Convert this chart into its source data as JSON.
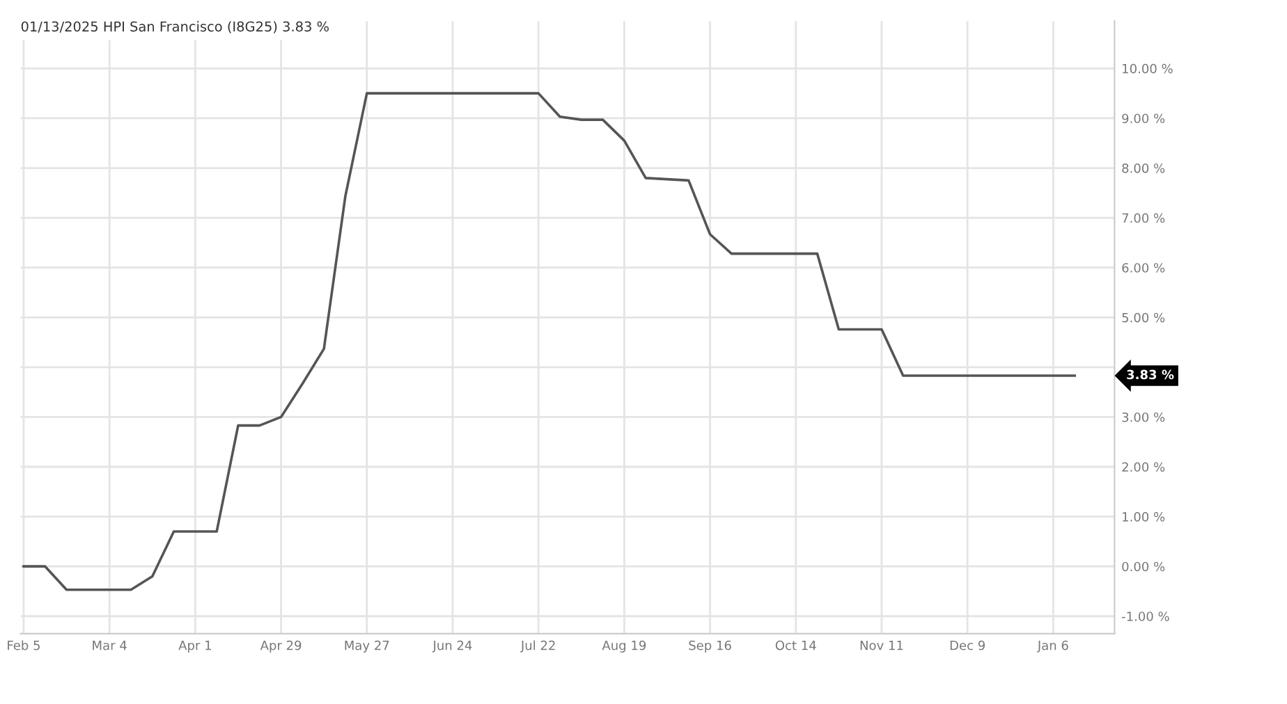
{
  "chart_data": {
    "type": "line",
    "title": "01/13/2025 HPI San Francisco (I8G25) 3.83 %",
    "x": [
      "2024-02-05",
      "2024-02-12",
      "2024-02-19",
      "2024-03-11",
      "2024-03-18",
      "2024-03-25",
      "2024-04-08",
      "2024-04-15",
      "2024-04-22",
      "2024-04-29",
      "2024-05-06",
      "2024-05-13",
      "2024-05-20",
      "2024-05-27",
      "2024-07-22",
      "2024-07-29",
      "2024-08-05",
      "2024-08-12",
      "2024-08-19",
      "2024-08-26",
      "2024-09-09",
      "2024-09-16",
      "2024-09-23",
      "2024-10-21",
      "2024-10-28",
      "2024-11-11",
      "2024-11-18",
      "2025-01-13"
    ],
    "series": [
      {
        "color": "#555555",
        "values": [
          0.0,
          0.0,
          -0.47,
          -0.47,
          -0.2,
          0.7,
          0.7,
          2.83,
          2.83,
          3.0,
          3.67,
          4.37,
          7.44,
          9.5,
          9.5,
          9.03,
          8.97,
          8.97,
          8.55,
          7.8,
          7.75,
          6.67,
          6.28,
          6.28,
          4.76,
          4.76,
          3.83,
          3.83
        ]
      }
    ],
    "xlim": [
      "2024-02-04",
      "2025-01-26"
    ],
    "xticks": [
      {
        "value": "2024-02-05",
        "label": "Feb 5"
      },
      {
        "value": "2024-03-04",
        "label": "Mar 4"
      },
      {
        "value": "2024-04-01",
        "label": "Apr 1"
      },
      {
        "value": "2024-04-29",
        "label": "Apr 29"
      },
      {
        "value": "2024-05-27",
        "label": "May 27"
      },
      {
        "value": "2024-06-24",
        "label": "Jun 24"
      },
      {
        "value": "2024-07-22",
        "label": "Jul 22"
      },
      {
        "value": "2024-08-19",
        "label": "Aug 19"
      },
      {
        "value": "2024-09-16",
        "label": "Sep 16"
      },
      {
        "value": "2024-10-14",
        "label": "Oct 14"
      },
      {
        "value": "2024-11-11",
        "label": "Nov 11"
      },
      {
        "value": "2024-12-09",
        "label": "Dec 9"
      },
      {
        "value": "2025-01-06",
        "label": "Jan 6"
      }
    ],
    "ylim": [
      -1.35,
      10.95
    ],
    "yticks": [
      {
        "value": -1,
        "label": "-1.00 %"
      },
      {
        "value": 0,
        "label": "0.00 %"
      },
      {
        "value": 1,
        "label": "1.00 %"
      },
      {
        "value": 2,
        "label": "2.00 %"
      },
      {
        "value": 3,
        "label": "3.00 %"
      },
      {
        "value": 4,
        "label": null
      },
      {
        "value": 5,
        "label": "5.00 %"
      },
      {
        "value": 6,
        "label": "6.00 %"
      },
      {
        "value": 7,
        "label": "7.00 %"
      },
      {
        "value": 8,
        "label": "8.00 %"
      },
      {
        "value": 9,
        "label": "9.00 %"
      },
      {
        "value": 10,
        "label": "10.00 %"
      }
    ],
    "annotations": [
      "3.83 %"
    ],
    "grid": true,
    "marker": "none",
    "line_style": "solid"
  }
}
